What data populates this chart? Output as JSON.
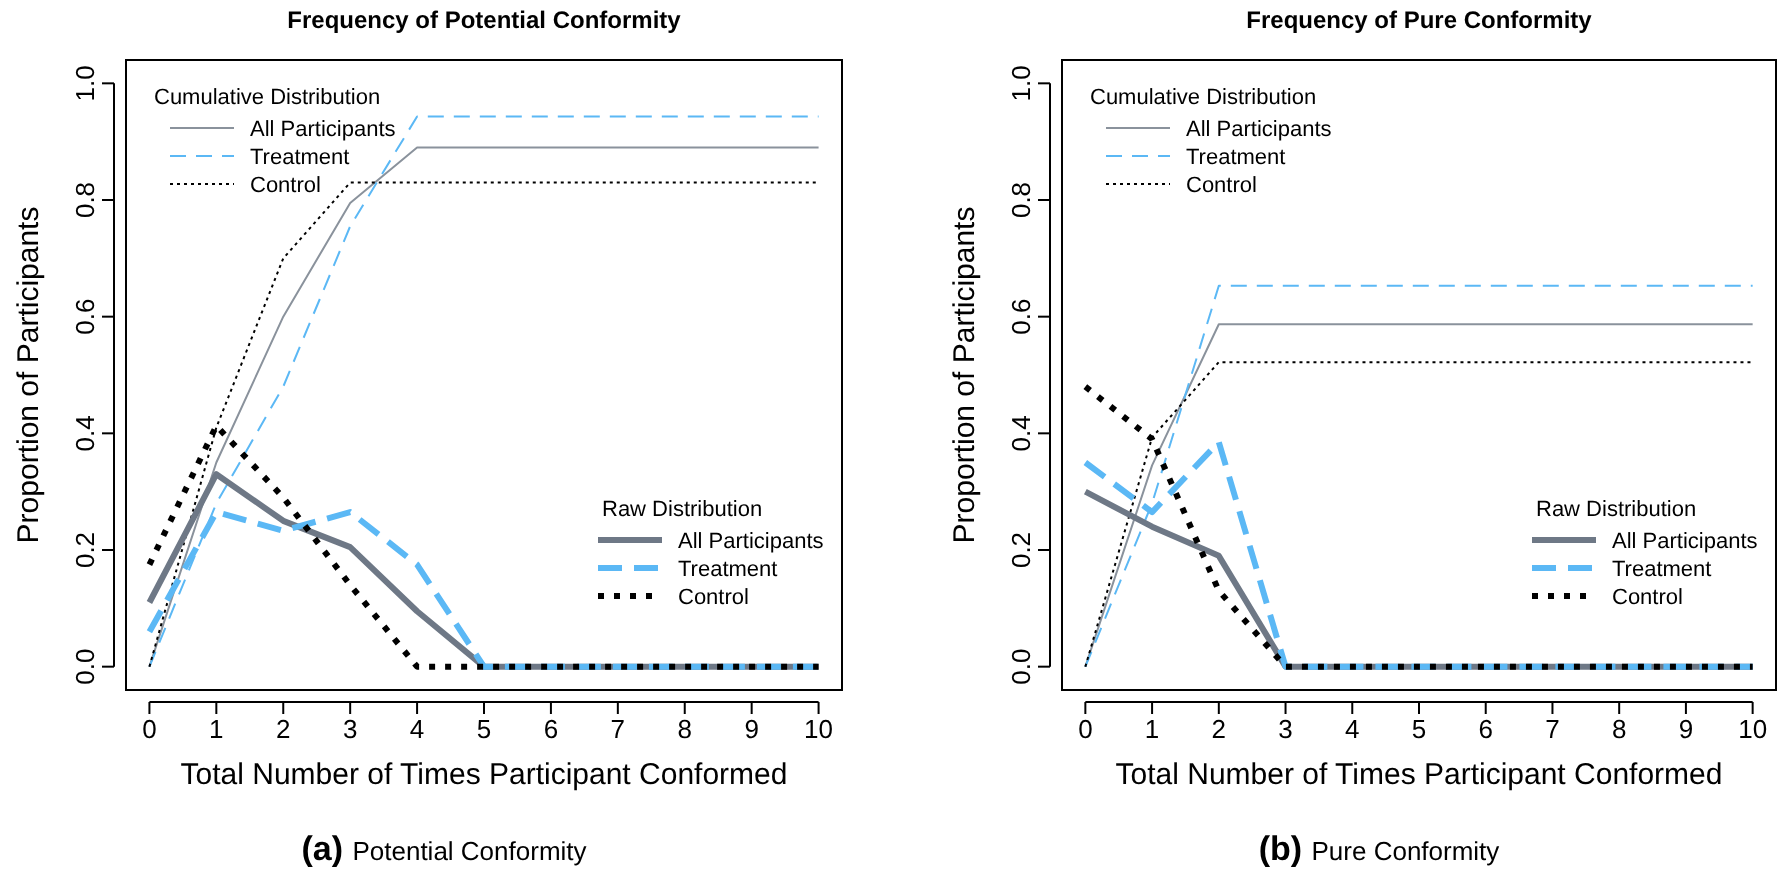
{
  "chart_data": [
    {
      "type": "line",
      "title": "Frequency of Potential Conformity",
      "xlabel": "Total Number of Times Participant Conformed",
      "ylabel": "Proportion of Participants",
      "legend_title": "Cumulative Distribution",
      "annotations": [
        "Raw Distribution",
        "(a) Potential Conformity"
      ],
      "legend": "top left",
      "x": [
        0,
        1,
        2,
        3,
        4,
        5,
        6,
        7,
        8,
        9,
        10
      ],
      "xlim": [
        -0.35,
        10.35
      ],
      "xticks": [
        0,
        1,
        2,
        3,
        4,
        5,
        6,
        7,
        8,
        9,
        10
      ],
      "ylim": [
        -0.04,
        1.04
      ],
      "yticks": [
        {
          "value": 0,
          "label": "0.0"
        },
        {
          "value": 0.2,
          "label": "0.2"
        },
        {
          "value": 0.4,
          "label": "0.4"
        },
        {
          "value": 0.6,
          "label": "0.6"
        },
        {
          "value": 0.8,
          "label": "0.8"
        },
        {
          "value": 1,
          "label": "1.0"
        }
      ],
      "series": [
        {
          "name": "All Participants",
          "color": "#8a929c",
          "line_style": "solid",
          "values": [
            0,
            0.35,
            0.6,
            0.795,
            0.89,
            0.89,
            0.89,
            0.89,
            0.89,
            0.89,
            0.89
          ]
        },
        {
          "name": "Treatment",
          "color": "#5bb8f5",
          "line_style": "dashed",
          "values": [
            0,
            0.28,
            0.48,
            0.755,
            0.943,
            0.943,
            0.943,
            0.943,
            0.943,
            0.943,
            0.943
          ]
        },
        {
          "name": "Control",
          "color": "#000000",
          "line_style": "dotted",
          "values": [
            0,
            0.41,
            0.7,
            0.83,
            0.83,
            0.83,
            0.83,
            0.83,
            0.83,
            0.83,
            0.83
          ]
        },
        {
          "name": "All Participants",
          "color": "#6e7886",
          "line_style": "solid",
          "values": [
            0.11,
            0.33,
            0.25,
            0.205,
            0.095,
            0,
            0,
            0,
            0,
            0,
            0
          ]
        },
        {
          "name": "Treatment",
          "color": "#5bb8f5",
          "line_style": "dashed",
          "values": [
            0.06,
            0.265,
            0.233,
            0.265,
            0.175,
            0,
            0,
            0,
            0,
            0,
            0
          ]
        },
        {
          "name": "Control",
          "color": "#000000",
          "line_style": "dotted",
          "values": [
            0.175,
            0.413,
            0.29,
            0.14,
            0,
            0,
            0,
            0,
            0,
            0,
            0
          ]
        }
      ]
    },
    {
      "type": "line",
      "title": "Frequency of Pure Conformity",
      "xlabel": "Total Number of Times Participant Conformed",
      "ylabel": "Proportion of Participants",
      "legend_title": "Cumulative Distribution",
      "annotations": [
        "Raw Distribution",
        "(b) Pure Conformity"
      ],
      "legend": "top left",
      "x": [
        0,
        1,
        2,
        3,
        4,
        5,
        6,
        7,
        8,
        9,
        10
      ],
      "xlim": [
        -0.35,
        10.35
      ],
      "xticks": [
        0,
        1,
        2,
        3,
        4,
        5,
        6,
        7,
        8,
        9,
        10
      ],
      "ylim": [
        -0.04,
        1.04
      ],
      "yticks": [
        {
          "value": 0,
          "label": "0.0"
        },
        {
          "value": 0.2,
          "label": "0.2"
        },
        {
          "value": 0.4,
          "label": "0.4"
        },
        {
          "value": 0.6,
          "label": "0.6"
        },
        {
          "value": 0.8,
          "label": "0.8"
        },
        {
          "value": 1,
          "label": "1.0"
        }
      ],
      "series": [
        {
          "name": "All Participants",
          "color": "#8a929c",
          "line_style": "solid",
          "values": [
            0,
            0.345,
            0.587,
            0.587,
            0.587,
            0.587,
            0.587,
            0.587,
            0.587,
            0.587,
            0.587
          ]
        },
        {
          "name": "Treatment",
          "color": "#5bb8f5",
          "line_style": "dashed",
          "values": [
            0,
            0.28,
            0.653,
            0.653,
            0.653,
            0.653,
            0.653,
            0.653,
            0.653,
            0.653,
            0.653
          ]
        },
        {
          "name": "Control",
          "color": "#000000",
          "line_style": "dotted",
          "values": [
            0,
            0.393,
            0.522,
            0.522,
            0.522,
            0.522,
            0.522,
            0.522,
            0.522,
            0.522,
            0.522
          ]
        },
        {
          "name": "All Participants",
          "color": "#6e7886",
          "line_style": "solid",
          "values": [
            0.3,
            0.24,
            0.19,
            0,
            0,
            0,
            0,
            0,
            0,
            0,
            0
          ]
        },
        {
          "name": "Treatment",
          "color": "#5bb8f5",
          "line_style": "dashed",
          "values": [
            0.35,
            0.265,
            0.385,
            0,
            0,
            0,
            0,
            0,
            0,
            0,
            0
          ]
        },
        {
          "name": "Control",
          "color": "#000000",
          "line_style": "dotted",
          "values": [
            0.48,
            0.39,
            0.13,
            0,
            0,
            0,
            0,
            0,
            0,
            0,
            0
          ]
        }
      ]
    }
  ]
}
